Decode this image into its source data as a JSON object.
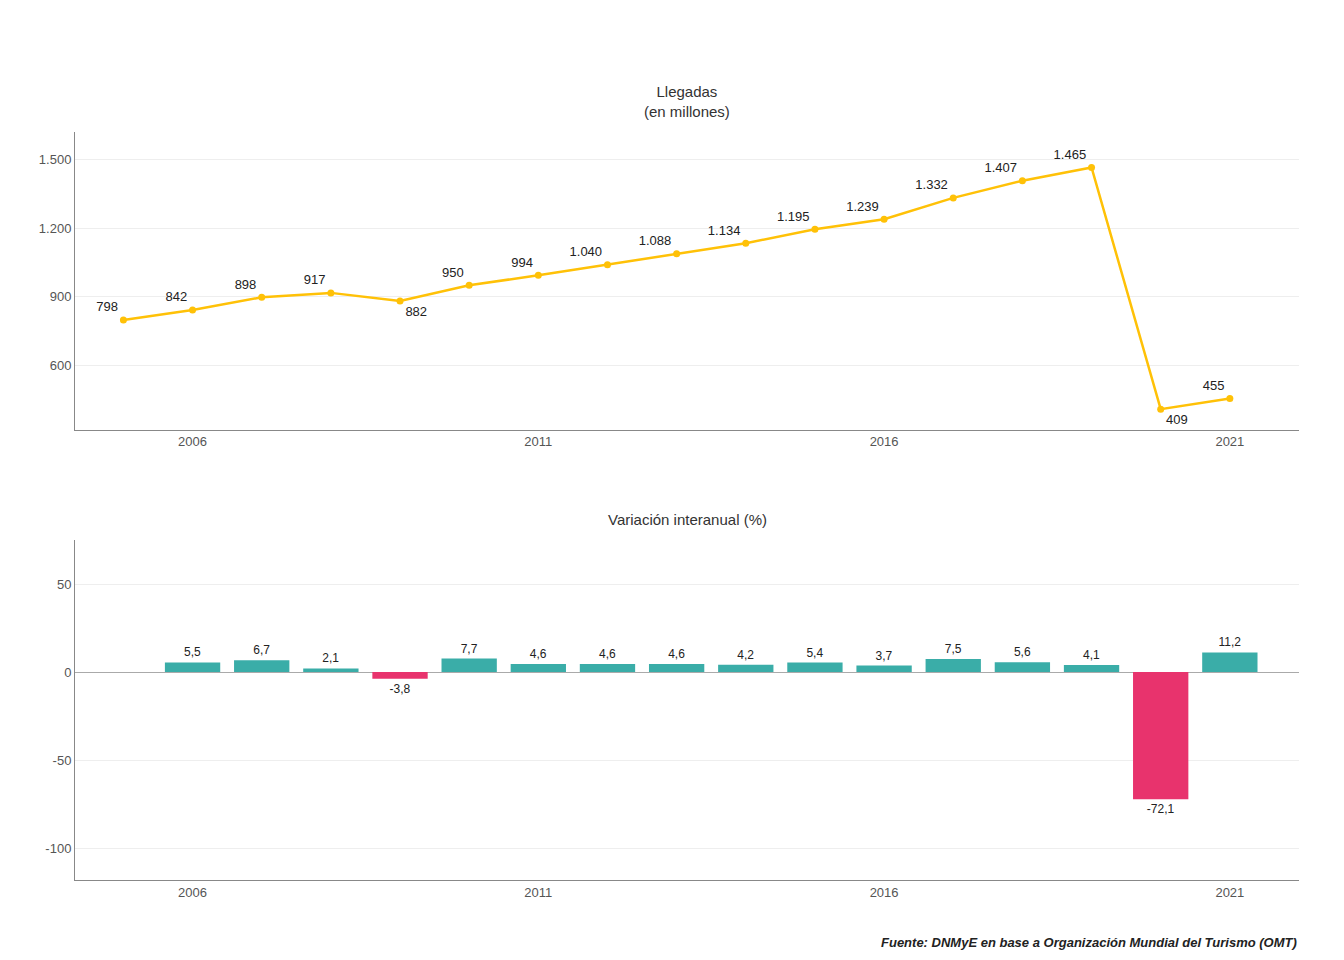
{
  "chart_data": [
    {
      "type": "line",
      "title": "Llegadas\n(en millones)",
      "x": [
        2005,
        2006,
        2007,
        2008,
        2009,
        2010,
        2011,
        2012,
        2013,
        2014,
        2015,
        2016,
        2017,
        2018,
        2019,
        2020,
        2021
      ],
      "values": [
        798,
        842,
        898,
        917,
        882,
        950,
        994,
        1040,
        1088,
        1134,
        1195,
        1239,
        1332,
        1407,
        1465,
        409,
        455
      ],
      "value_labels": [
        "798",
        "842",
        "898",
        "917",
        "882",
        "950",
        "994",
        "1.040",
        "1.088",
        "1.134",
        "1.195",
        "1.239",
        "1.332",
        "1.407",
        "1.465",
        "409",
        "455"
      ],
      "data_labels": true,
      "color": "#FFC107",
      "marker": "circle",
      "xlim": [
        2004.3,
        2022.0
      ],
      "xticks": [
        2006,
        2011,
        2016,
        2021
      ],
      "ylim": [
        320,
        1620
      ],
      "yticks": [
        600,
        900,
        {
          "value": 1200,
          "label": "1.200"
        },
        {
          "value": 1500,
          "label": "1.500"
        }
      ],
      "grid": true
    },
    {
      "type": "bar",
      "title": "Variación interanual (%)",
      "x": [
        2006,
        2007,
        2008,
        2009,
        2010,
        2011,
        2012,
        2013,
        2014,
        2015,
        2016,
        2017,
        2018,
        2019,
        2020,
        2021
      ],
      "values": [
        5.5,
        6.7,
        2.1,
        -3.8,
        7.7,
        4.6,
        4.6,
        4.6,
        4.2,
        5.4,
        3.7,
        7.5,
        5.6,
        4.1,
        -72.1,
        11.2
      ],
      "value_labels": [
        "5,5",
        "6,7",
        "2,1",
        "-3,8",
        "7,7",
        "4,6",
        "4,6",
        "4,6",
        "4,2",
        "5,4",
        "3,7",
        "7,5",
        "5,6",
        "4,1",
        "-72,1",
        "11,2"
      ],
      "data_labels": true,
      "colors": [
        "#3aada8",
        "#3aada8",
        "#3aada8",
        "#e8336d",
        "#3aada8",
        "#3aada8",
        "#3aada8",
        "#3aada8",
        "#3aada8",
        "#3aada8",
        "#3aada8",
        "#3aada8",
        "#3aada8",
        "#3aada8",
        "#e8336d",
        "#3aada8"
      ],
      "xlim": [
        2004.3,
        2022.0
      ],
      "xticks": [
        2006,
        2011,
        2016,
        2021
      ],
      "ylim": [
        -118,
        75
      ],
      "yticks": [
        -100,
        -50,
        0,
        50
      ],
      "grid": true,
      "annotations": [
        "Fuente: DNMyE en base a Organización Mundial del Turismo (OMT)"
      ]
    }
  ]
}
